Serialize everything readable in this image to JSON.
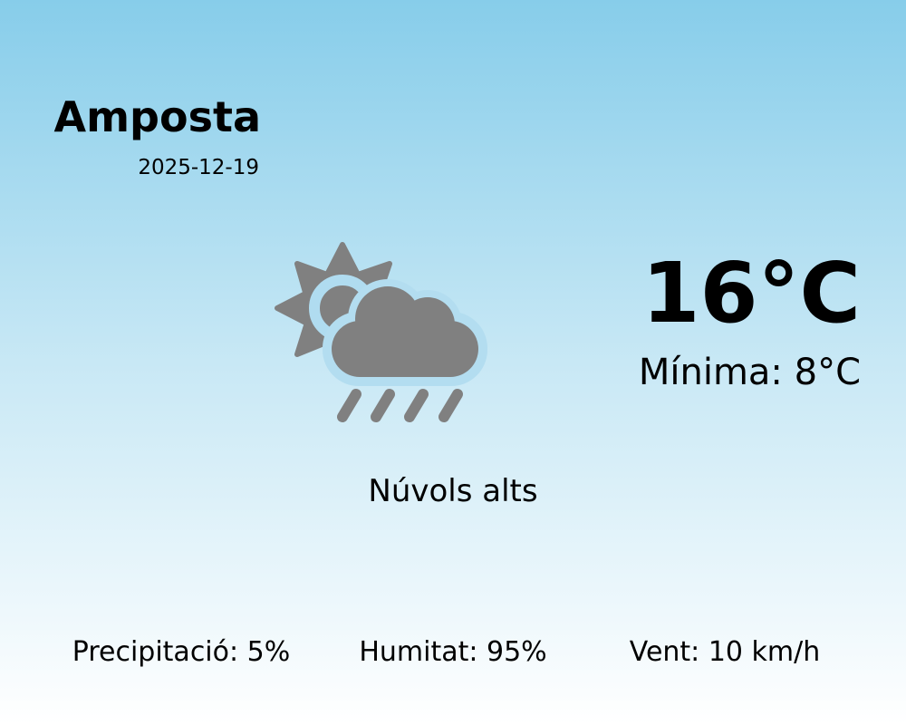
{
  "location": {
    "city": "Amposta",
    "date": "2025-12-19"
  },
  "current": {
    "temperature": "16°C",
    "minimum": "Mínima: 8°C",
    "condition": "Núvols alts",
    "icon": "partly-cloudy-rain-icon",
    "icon_color": "#808080"
  },
  "stats": [
    {
      "label": "Precipitació: 5%"
    },
    {
      "label": "Humitat: 95%"
    },
    {
      "label": "Vent: 10 km/h"
    }
  ]
}
